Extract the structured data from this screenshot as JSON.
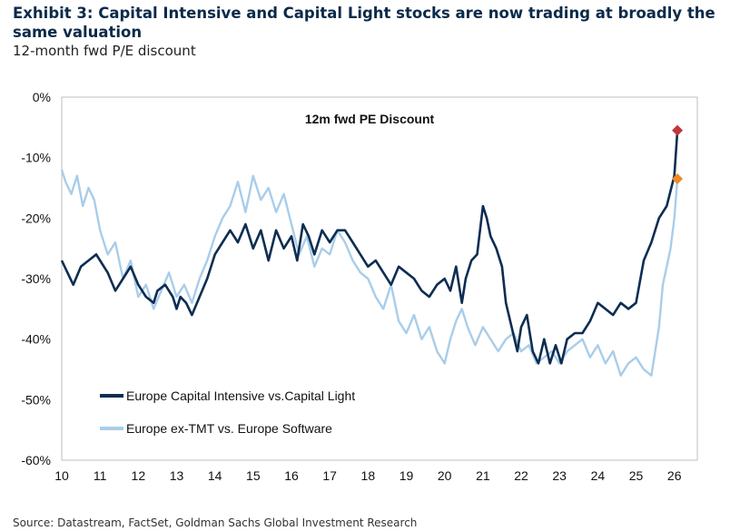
{
  "exhibit": {
    "title": "Exhibit 3: Capital Intensive and Capital Light stocks are now trading at broadly the same valuation",
    "subtitle": "12-month fwd P/E discount",
    "source": "Source: Datastream, FactSet, Goldman Sachs Global Investment Research"
  },
  "chart_data": {
    "type": "line",
    "title": "12m fwd PE Discount",
    "xlabel": "",
    "ylabel": "",
    "xlim": [
      2010,
      2026.6
    ],
    "ylim": [
      -60,
      0
    ],
    "x_ticks": [
      "10",
      "11",
      "12",
      "13",
      "14",
      "15",
      "16",
      "17",
      "18",
      "19",
      "20",
      "21",
      "22",
      "23",
      "24",
      "25",
      "26"
    ],
    "y_ticks": [
      "0%",
      "-10%",
      "-20%",
      "-30%",
      "-40%",
      "-50%",
      "-60%"
    ],
    "grid": false,
    "legend_position": "bottom-left",
    "series": [
      {
        "name": "Europe Capital Intensive vs.Capital Light",
        "color": "#0d2d52",
        "marker_color": "#c0363c",
        "x": [
          2010.0,
          2010.15,
          2010.3,
          2010.5,
          2010.7,
          2010.9,
          2011.0,
          2011.2,
          2011.4,
          2011.6,
          2011.8,
          2012.0,
          2012.2,
          2012.4,
          2012.5,
          2012.7,
          2012.9,
          2013.0,
          2013.1,
          2013.25,
          2013.4,
          2013.6,
          2013.8,
          2014.0,
          2014.2,
          2014.4,
          2014.6,
          2014.8,
          2015.0,
          2015.2,
          2015.4,
          2015.6,
          2015.8,
          2016.0,
          2016.15,
          2016.3,
          2016.45,
          2016.6,
          2016.8,
          2017.0,
          2017.2,
          2017.4,
          2017.6,
          2017.8,
          2018.0,
          2018.2,
          2018.4,
          2018.6,
          2018.8,
          2019.0,
          2019.2,
          2019.4,
          2019.6,
          2019.8,
          2020.0,
          2020.15,
          2020.3,
          2020.45,
          2020.55,
          2020.7,
          2020.85,
          2021.0,
          2021.1,
          2021.2,
          2021.35,
          2021.5,
          2021.6,
          2021.75,
          2021.9,
          2022.0,
          2022.15,
          2022.3,
          2022.45,
          2022.6,
          2022.75,
          2022.9,
          2023.05,
          2023.2,
          2023.4,
          2023.6,
          2023.8,
          2024.0,
          2024.2,
          2024.4,
          2024.6,
          2024.8,
          2025.0,
          2025.2,
          2025.4,
          2025.6,
          2025.8,
          2026.0,
          2026.08
        ],
        "y": [
          -27,
          -29,
          -31,
          -28,
          -27,
          -26,
          -27,
          -29,
          -32,
          -30,
          -28,
          -31,
          -33,
          -34,
          -32,
          -31,
          -33,
          -35,
          -33,
          -34,
          -36,
          -33,
          -30,
          -26,
          -24,
          -22,
          -24,
          -21,
          -25,
          -22,
          -27,
          -22,
          -25,
          -23,
          -27,
          -21,
          -23,
          -26,
          -22,
          -24,
          -22,
          -22,
          -24,
          -26,
          -28,
          -27,
          -29,
          -31,
          -28,
          -29,
          -30,
          -32,
          -33,
          -31,
          -30,
          -32,
          -28,
          -34,
          -30,
          -27,
          -26,
          -18,
          -20,
          -23,
          -25,
          -28,
          -34,
          -38,
          -42,
          -38,
          -36,
          -42,
          -44,
          -40,
          -44,
          -41,
          -44,
          -40,
          -39,
          -39,
          -37,
          -34,
          -35,
          -36,
          -34,
          -35,
          -34,
          -27,
          -24,
          -20,
          -18,
          -13,
          -5.5
        ]
      },
      {
        "name": "Europe ex-TMT vs. Europe Software",
        "color": "#a9cde9",
        "marker_color": "#f18a24",
        "x": [
          2010.0,
          2010.1,
          2010.25,
          2010.4,
          2010.55,
          2010.7,
          2010.85,
          2011.0,
          2011.2,
          2011.4,
          2011.6,
          2011.8,
          2012.0,
          2012.2,
          2012.4,
          2012.6,
          2012.8,
          2013.0,
          2013.2,
          2013.4,
          2013.6,
          2013.8,
          2014.0,
          2014.2,
          2014.4,
          2014.6,
          2014.8,
          2015.0,
          2015.2,
          2015.4,
          2015.6,
          2015.8,
          2016.0,
          2016.2,
          2016.4,
          2016.6,
          2016.8,
          2017.0,
          2017.2,
          2017.4,
          2017.6,
          2017.8,
          2018.0,
          2018.2,
          2018.4,
          2018.6,
          2018.8,
          2019.0,
          2019.2,
          2019.4,
          2019.6,
          2019.8,
          2020.0,
          2020.15,
          2020.3,
          2020.45,
          2020.6,
          2020.8,
          2021.0,
          2021.2,
          2021.4,
          2021.6,
          2021.8,
          2022.0,
          2022.2,
          2022.4,
          2022.6,
          2022.8,
          2023.0,
          2023.2,
          2023.4,
          2023.6,
          2023.8,
          2024.0,
          2024.2,
          2024.4,
          2024.6,
          2024.8,
          2025.0,
          2025.2,
          2025.4,
          2025.6,
          2025.7,
          2025.8,
          2025.9,
          2026.0,
          2026.08
        ],
        "y": [
          -12,
          -14,
          -16,
          -13,
          -18,
          -15,
          -17,
          -22,
          -26,
          -24,
          -30,
          -27,
          -33,
          -31,
          -35,
          -32,
          -29,
          -33,
          -31,
          -34,
          -30,
          -27,
          -23,
          -20,
          -18,
          -14,
          -19,
          -13,
          -17,
          -15,
          -19,
          -16,
          -21,
          -26,
          -23,
          -28,
          -25,
          -26,
          -22,
          -24,
          -27,
          -29,
          -30,
          -33,
          -35,
          -31,
          -37,
          -39,
          -36,
          -40,
          -38,
          -42,
          -44,
          -40,
          -37,
          -35,
          -38,
          -41,
          -38,
          -40,
          -42,
          -40,
          -39,
          -42,
          -41,
          -44,
          -43,
          -42,
          -44,
          -42,
          -41,
          -40,
          -43,
          -41,
          -44,
          -42,
          -46,
          -44,
          -43,
          -45,
          -46,
          -38,
          -31,
          -28,
          -25,
          -20,
          -13.5
        ]
      }
    ]
  }
}
